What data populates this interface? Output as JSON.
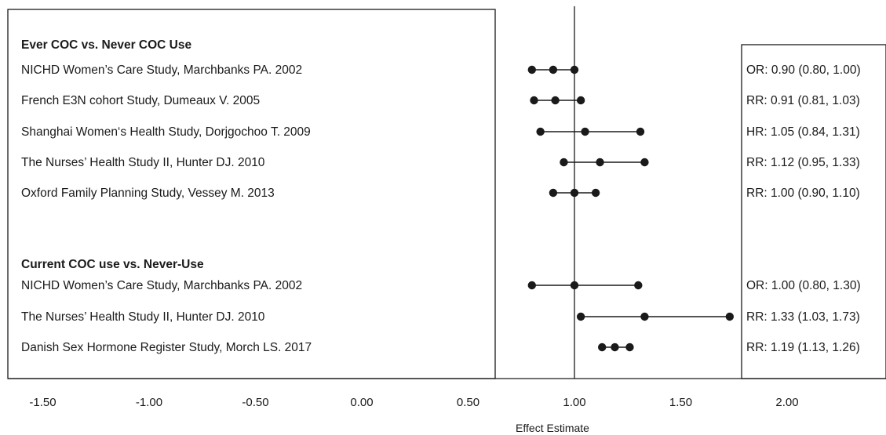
{
  "chart_data": {
    "type": "forest",
    "xlabel": "Effect Estimate",
    "reference_line": 1.0,
    "xlim": [
      -1.75,
      2.3
    ],
    "x_ticks": [
      {
        "value": -1.5,
        "label": "-1.50"
      },
      {
        "value": -1.0,
        "label": "-1.00"
      },
      {
        "value": -0.5,
        "label": "-0.50"
      },
      {
        "value": 0.0,
        "label": "0.00"
      },
      {
        "value": 0.5,
        "label": "0.50"
      },
      {
        "value": 1.0,
        "label": "1.00"
      },
      {
        "value": 1.5,
        "label": "1.50"
      },
      {
        "value": 2.0,
        "label": "2.00"
      }
    ],
    "groups": [
      {
        "title": "Ever COC vs. Never COC Use",
        "studies": [
          {
            "label": "NICHD Women’s  Care  Study, Marchbanks PA. 2002",
            "estimate": 0.9,
            "lower": 0.8,
            "upper": 1.0,
            "text": "OR: 0.90 (0.80, 1.00)"
          },
          {
            "label": "French E3N cohort Study, Dumeaux V. 2005",
            "estimate": 0.91,
            "lower": 0.81,
            "upper": 1.03,
            "text": "RR: 0.91 (0.81, 1.03)"
          },
          {
            "label": "Shanghai Women‘s Health Study, Dorjgochoo T. 2009",
            "estimate": 1.05,
            "lower": 0.84,
            "upper": 1.31,
            "text": "HR: 1.05 (0.84, 1.31)"
          },
          {
            "label": "The Nurses’ Health Study II, Hunter DJ. 2010",
            "estimate": 1.12,
            "lower": 0.95,
            "upper": 1.33,
            "text": "RR: 1.12 (0.95, 1.33)"
          },
          {
            "label": "Oxford Family Planning Study, Vessey M. 2013",
            "estimate": 1.0,
            "lower": 0.9,
            "upper": 1.1,
            "text": "RR: 1.00 (0.90, 1.10)"
          }
        ]
      },
      {
        "title": "Current COC use vs. Never-Use",
        "studies": [
          {
            "label": "NICHD Women’s Care Study, Marchbanks PA. 2002",
            "estimate": 1.0,
            "lower": 0.8,
            "upper": 1.3,
            "text": "OR: 1.00 (0.80, 1.30)"
          },
          {
            "label": "The Nurses’ Health Study II, Hunter DJ. 2010",
            "estimate": 1.33,
            "lower": 1.03,
            "upper": 1.73,
            "text": "RR: 1.33 (1.03, 1.73)"
          },
          {
            "label": "Danish Sex Hormone Register Study, Morch LS. 2017",
            "estimate": 1.19,
            "lower": 1.13,
            "upper": 1.26,
            "text": "RR: 1.19 (1.13, 1.26)"
          }
        ]
      }
    ]
  }
}
